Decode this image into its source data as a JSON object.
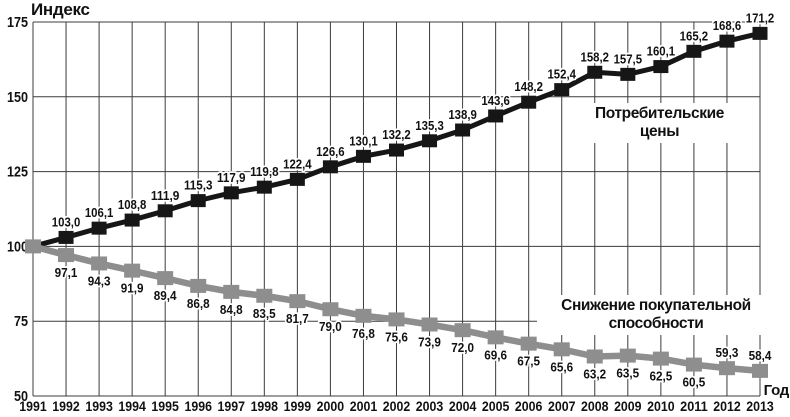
{
  "chart_data": {
    "type": "line",
    "ylabel": "Индекс",
    "xlabel": "Год",
    "x": [
      1991,
      1992,
      1993,
      1994,
      1995,
      1996,
      1997,
      1998,
      1999,
      2000,
      2001,
      2002,
      2003,
      2004,
      2005,
      2006,
      2007,
      2008,
      2009,
      2010,
      2011,
      2012,
      2013
    ],
    "series": [
      {
        "name": "Потребительские цены",
        "label_lines": [
          "Потребительские",
          "цены"
        ],
        "color": "#161616",
        "label_position": "above",
        "values": [
          100,
          103.0,
          106.1,
          108.8,
          111.9,
          115.3,
          117.9,
          119.8,
          122.4,
          126.6,
          130.1,
          132.2,
          135.3,
          138.9,
          143.6,
          148.2,
          152.4,
          158.2,
          157.5,
          160.1,
          165.2,
          168.6,
          171.2
        ]
      },
      {
        "name": "Снижение покупательной способности",
        "label_lines": [
          "Снижение покупательной",
          "способности"
        ],
        "color": "#8e8e8e",
        "label_position": "below",
        "label_position_overrides": {
          "21": "above",
          "22": "above"
        },
        "values": [
          100,
          97.1,
          94.3,
          91.9,
          89.4,
          86.8,
          84.8,
          83.5,
          81.7,
          79.0,
          76.8,
          75.6,
          73.9,
          72.0,
          69.6,
          67.5,
          65.6,
          63.2,
          63.5,
          62.5,
          60.5,
          59.3,
          58.4
        ]
      }
    ],
    "ylim": [
      50,
      175
    ],
    "yticks": [
      50,
      75,
      100,
      125,
      150,
      175
    ],
    "grid": true,
    "grid_color": "#3c3c3c",
    "text_color": "#111111",
    "decimal_separator": ",",
    "legend_position": "inline-annotations",
    "first_point_unlabeled": true
  }
}
